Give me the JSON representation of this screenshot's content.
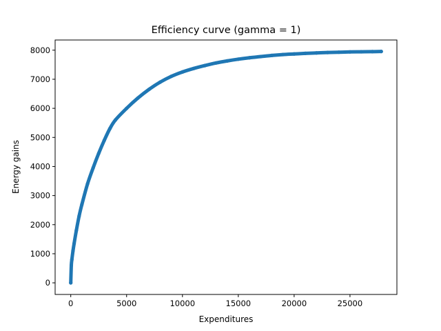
{
  "chart_data": {
    "type": "scatter",
    "title": "Efficiency curve (gamma = 1)",
    "xlabel": "Expenditures",
    "ylabel": "Energy gains",
    "xlim": [
      -1400,
      29200
    ],
    "ylim": [
      -400,
      8350
    ],
    "xticks": [
      0,
      5000,
      10000,
      15000,
      20000,
      25000
    ],
    "yticks": [
      0,
      1000,
      2000,
      3000,
      4000,
      5000,
      6000,
      7000,
      8000
    ],
    "xtick_labels": [
      "0",
      "5000",
      "10000",
      "15000",
      "20000",
      "25000"
    ],
    "ytick_labels": [
      "0",
      "1000",
      "2000",
      "3000",
      "4000",
      "5000",
      "6000",
      "7000",
      "8000"
    ],
    "grid": false,
    "legend": "none",
    "series": [
      {
        "color": "#1f77b4",
        "x": [
          0,
          50,
          100,
          200,
          300,
          500,
          750,
          1000,
          1500,
          2000,
          2500,
          3000,
          3500,
          4000,
          5000,
          6000,
          7000,
          8000,
          9000,
          10000,
          11000,
          12000,
          13000,
          14000,
          15000,
          16000,
          17000,
          18000,
          19000,
          20000,
          21000,
          22000,
          23000,
          24000,
          25000,
          26000,
          27000,
          27800
        ],
        "y": [
          0,
          600,
          800,
          1100,
          1350,
          1800,
          2300,
          2700,
          3400,
          3950,
          4450,
          4900,
          5300,
          5600,
          6000,
          6350,
          6650,
          6900,
          7100,
          7250,
          7370,
          7470,
          7560,
          7630,
          7690,
          7740,
          7780,
          7820,
          7850,
          7870,
          7890,
          7905,
          7920,
          7930,
          7940,
          7945,
          7950,
          7955
        ]
      }
    ]
  }
}
